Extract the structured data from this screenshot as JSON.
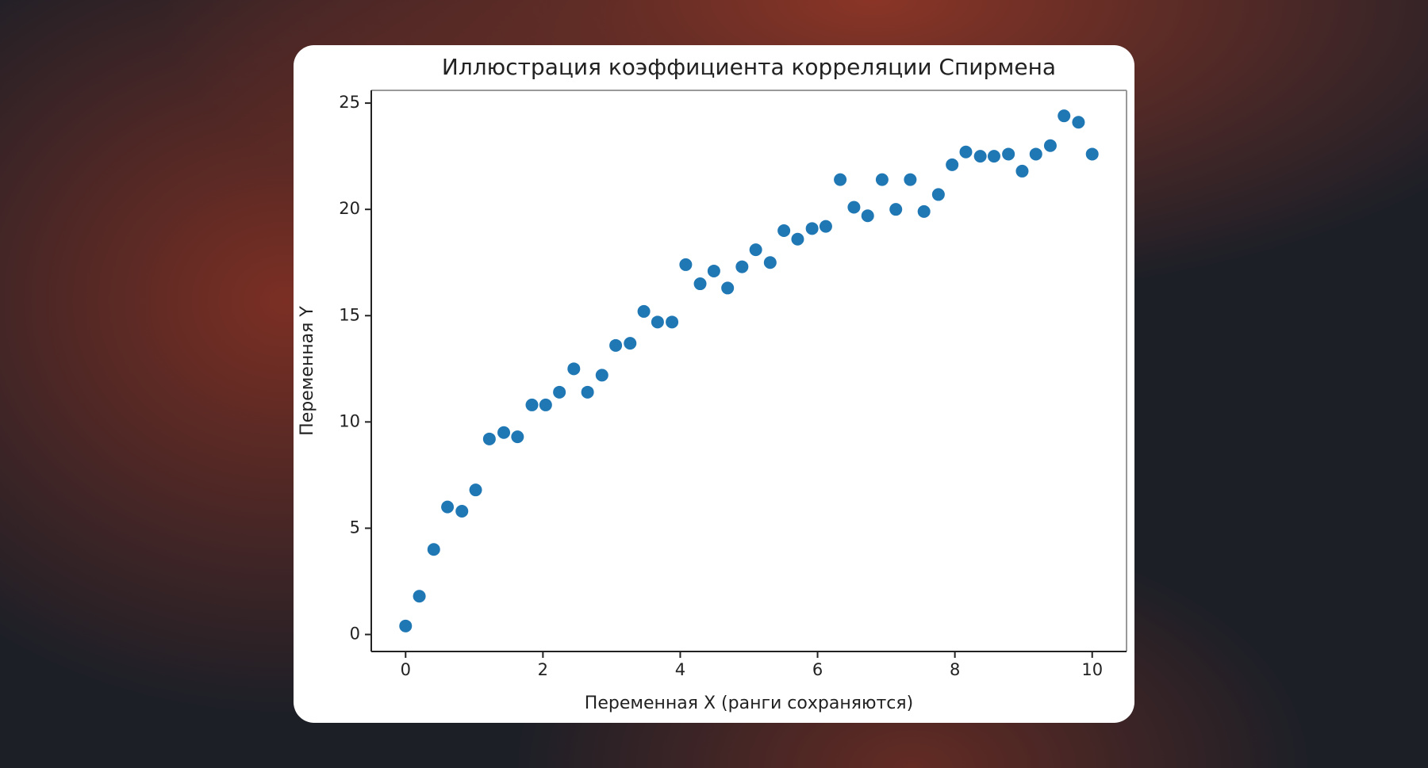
{
  "chart_data": {
    "type": "scatter",
    "title": "Иллюстрация коэффициента корреляции Спирмена",
    "xlabel": "Переменная X (ранги сохраняются)",
    "ylabel": "Переменная Y",
    "color": "#1f77b4",
    "grid": false,
    "x": [
      0,
      0.2,
      0.41,
      0.61,
      0.82,
      1.02,
      1.22,
      1.43,
      1.63,
      1.84,
      2.04,
      2.24,
      2.45,
      2.65,
      2.86,
      3.06,
      3.27,
      3.47,
      3.67,
      3.88,
      4.08,
      4.29,
      4.49,
      4.69,
      4.9,
      5.1,
      5.31,
      5.51,
      5.71,
      5.92,
      6.12,
      6.33,
      6.53,
      6.73,
      6.94,
      7.14,
      7.35,
      7.55,
      7.76,
      7.96,
      8.16,
      8.37,
      8.57,
      8.78,
      8.98,
      9.18,
      9.39,
      9.59,
      9.8,
      10
    ],
    "values": [
      0.4,
      1.8,
      4.0,
      6.0,
      5.8,
      6.8,
      9.2,
      9.5,
      9.3,
      10.8,
      10.8,
      11.4,
      12.5,
      11.4,
      12.2,
      13.6,
      13.7,
      15.2,
      14.7,
      14.7,
      17.4,
      16.5,
      17.1,
      16.3,
      17.3,
      18.1,
      17.5,
      19.0,
      18.6,
      19.1,
      19.2,
      21.4,
      20.1,
      19.7,
      21.4,
      20.0,
      21.4,
      19.9,
      20.7,
      22.1,
      22.7,
      22.5,
      22.5,
      22.6,
      21.8,
      22.6,
      23.0,
      24.4,
      24.1,
      22.6
    ],
    "xlim": [
      -0.5,
      10.5
    ],
    "ylim": [
      -0.8,
      25.6
    ],
    "xticks": [
      0,
      2,
      4,
      6,
      8,
      10
    ],
    "yticks": [
      0,
      5,
      10,
      15,
      20,
      25
    ]
  }
}
